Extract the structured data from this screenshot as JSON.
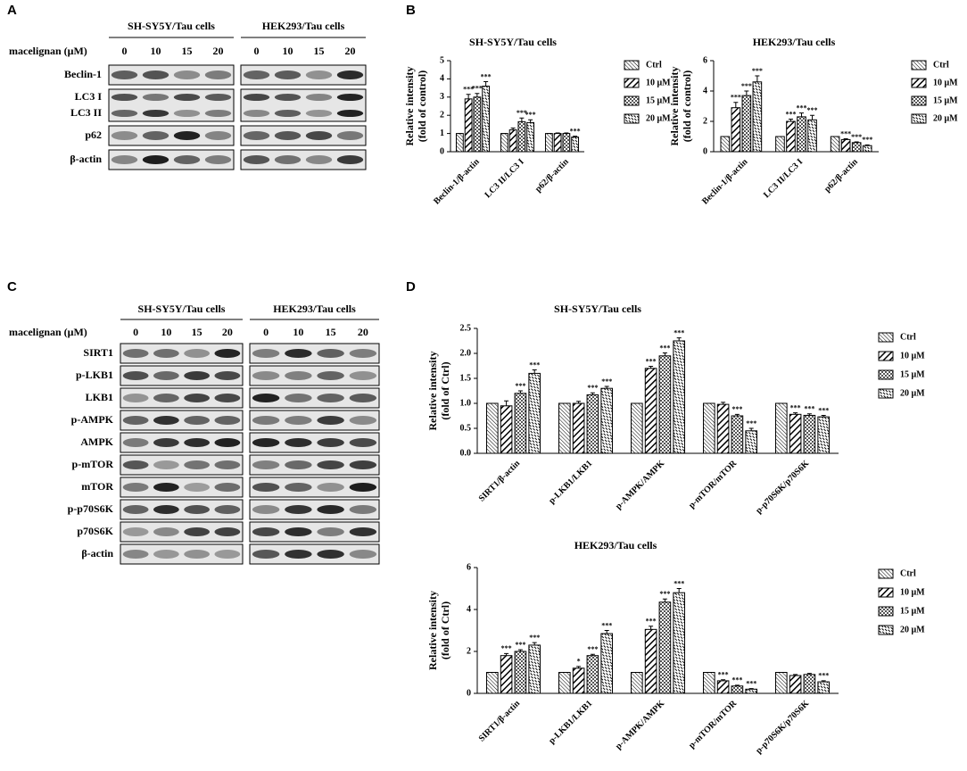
{
  "panel_labels": [
    "A",
    "B",
    "C",
    "D"
  ],
  "blots": [
    {
      "headers": [
        "SH-SY5Y/Tau cells",
        "HEK293/Tau cells"
      ],
      "dose_label": "macelignan (μM)",
      "doses": [
        0,
        10,
        15,
        20
      ],
      "rows": [
        [
          "Beclin-1"
        ],
        [
          "LC3 I",
          "LC3 II"
        ],
        [
          "p62"
        ],
        [
          "β-actin"
        ]
      ]
    },
    {
      "headers": [
        "SH-SY5Y/Tau cells",
        "HEK293/Tau cells"
      ],
      "dose_label": "macelignan (μM)",
      "doses": [
        0,
        10,
        15,
        20
      ],
      "rows": [
        [
          "SIRT1"
        ],
        [
          "p-LKB1"
        ],
        [
          "LKB1"
        ],
        [
          "p-AMPK"
        ],
        [
          "AMPK"
        ],
        [
          "p-mTOR"
        ],
        [
          "mTOR"
        ],
        [
          "p-p70S6K"
        ],
        [
          "p70S6K"
        ],
        [
          "β-actin"
        ]
      ]
    }
  ],
  "chart_data": [
    {
      "type": "bar",
      "title": "SH-SY5Y/Tau cells",
      "ylabel": [
        "Relative intensity",
        "(fold of control)"
      ],
      "categories": [
        "Beclin-1/β-actin",
        "LC3 II/LC3 I",
        "p62/β-actin"
      ],
      "ylim": [
        0,
        5
      ],
      "yticks": [
        0,
        1,
        2,
        3,
        4,
        5
      ],
      "legend": "right",
      "series": [
        {
          "name": "Ctrl",
          "color": "#000000",
          "pattern": "diag",
          "values": [
            1,
            1,
            1
          ],
          "errors": [
            0,
            0,
            0
          ],
          "sig": [
            null,
            null,
            null
          ]
        },
        {
          "name": "10 μM",
          "color": "#000000",
          "pattern": "heavy",
          "values": [
            2.9,
            1.2,
            1
          ],
          "errors": [
            0.25,
            0.1,
            0.03
          ],
          "sig": [
            "***",
            null,
            null
          ]
        },
        {
          "name": "15 μM",
          "color": "#000000",
          "pattern": "cross",
          "values": [
            3.0,
            1.65,
            1
          ],
          "errors": [
            0.2,
            0.2,
            0.03
          ],
          "sig": [
            "***",
            "***",
            null
          ]
        },
        {
          "name": "20 μM",
          "color": "#000000",
          "pattern": "dash",
          "values": [
            3.6,
            1.6,
            0.8
          ],
          "errors": [
            0.25,
            0.15,
            0.05
          ],
          "sig": [
            "***",
            "***",
            "***"
          ]
        }
      ]
    },
    {
      "type": "bar",
      "title": "HEK293/Tau cells",
      "ylabel": [
        "Relative intensity",
        "(fold of control)"
      ],
      "categories": [
        "Beclin-1/β-actin",
        "LC3 II/LC3 I",
        "p62/β-actin"
      ],
      "ylim": [
        0,
        6
      ],
      "yticks": [
        0,
        2,
        4,
        6
      ],
      "legend": "right",
      "series": [
        {
          "name": "Ctrl",
          "color": "#000000",
          "pattern": "diag",
          "values": [
            1,
            1,
            1
          ],
          "errors": [
            0,
            0,
            0
          ],
          "sig": [
            null,
            null,
            null
          ]
        },
        {
          "name": "10 μM",
          "color": "#000000",
          "pattern": "heavy",
          "values": [
            2.9,
            2.0,
            0.8
          ],
          "errors": [
            0.35,
            0.15,
            0.05
          ],
          "sig": [
            "***",
            "***",
            "***"
          ]
        },
        {
          "name": "15 μM",
          "color": "#000000",
          "pattern": "cross",
          "values": [
            3.7,
            2.3,
            0.6
          ],
          "errors": [
            0.3,
            0.25,
            0.05
          ],
          "sig": [
            "***",
            "***",
            "***"
          ]
        },
        {
          "name": "20 μM",
          "color": "#000000",
          "pattern": "dash",
          "values": [
            4.6,
            2.1,
            0.4
          ],
          "errors": [
            0.4,
            0.3,
            0.05
          ],
          "sig": [
            "***",
            "***",
            "***"
          ]
        }
      ]
    },
    {
      "type": "bar",
      "title": "SH-SY5Y/Tau cells",
      "ylabel": [
        "Relative intensity",
        "(fold of Ctrl)"
      ],
      "categories": [
        "SIRT1/β-actin",
        "p-LKB1/LKB1",
        "p-AMPK/AMPK",
        "p-mTOR/mTOR",
        "p-p70S6K/p70S6K"
      ],
      "ylim": [
        0,
        2.5
      ],
      "yticks": [
        {
          "value": 0,
          "label": "0.0"
        },
        0.5,
        {
          "value": 1,
          "label": "1.0"
        },
        1.5,
        {
          "value": 2,
          "label": "2.0"
        },
        2.5
      ],
      "legend": "right",
      "series": [
        {
          "name": "Ctrl",
          "color": "#000000",
          "pattern": "diag",
          "values": [
            1,
            1,
            1,
            1,
            1
          ],
          "errors": [
            0,
            0,
            0,
            0,
            0
          ],
          "sig": [
            null,
            null,
            null,
            null,
            null
          ]
        },
        {
          "name": "10 μM",
          "color": "#000000",
          "pattern": "heavy",
          "values": [
            0.95,
            1.0,
            1.7,
            0.98,
            0.78
          ],
          "errors": [
            0.1,
            0.04,
            0.04,
            0.04,
            0.03
          ],
          "sig": [
            null,
            null,
            "***",
            null,
            "***"
          ]
        },
        {
          "name": "15 μM",
          "color": "#000000",
          "pattern": "cross",
          "values": [
            1.2,
            1.17,
            1.95,
            0.75,
            0.76
          ],
          "errors": [
            0.05,
            0.04,
            0.06,
            0.03,
            0.03
          ],
          "sig": [
            "***",
            "***",
            "***",
            "***",
            "***"
          ]
        },
        {
          "name": "20 μM",
          "color": "#000000",
          "pattern": "dash",
          "values": [
            1.6,
            1.3,
            2.25,
            0.45,
            0.73
          ],
          "errors": [
            0.07,
            0.04,
            0.06,
            0.05,
            0.03
          ],
          "sig": [
            "***",
            "***",
            "***",
            "***",
            "***"
          ]
        }
      ]
    },
    {
      "type": "bar",
      "title": "HEK293/Tau cells",
      "ylabel": [
        "Relative intensity",
        "(fold of Ctrl)"
      ],
      "categories": [
        "SIRT1/β-actin",
        "p-LKB1/LKB1",
        "p-AMPK/AMPK",
        "p-mTOR/mTOR",
        "p-p70S6K/p70S6K"
      ],
      "ylim": [
        0,
        6
      ],
      "yticks": [
        0,
        2,
        4,
        6
      ],
      "legend": "right",
      "series": [
        {
          "name": "Ctrl",
          "color": "#000000",
          "pattern": "diag",
          "values": [
            1,
            1,
            1,
            1,
            1
          ],
          "errors": [
            0,
            0,
            0,
            0,
            0
          ],
          "sig": [
            null,
            null,
            null,
            null,
            null
          ]
        },
        {
          "name": "10 μM",
          "color": "#000000",
          "pattern": "heavy",
          "values": [
            1.8,
            1.2,
            3.05,
            0.6,
            0.85
          ],
          "errors": [
            0.1,
            0.08,
            0.15,
            0.05,
            0.05
          ],
          "sig": [
            "***",
            "*",
            "***",
            "***",
            null
          ]
        },
        {
          "name": "15 μM",
          "color": "#000000",
          "pattern": "cross",
          "values": [
            2.0,
            1.8,
            4.35,
            0.35,
            0.9
          ],
          "errors": [
            0.08,
            0.06,
            0.15,
            0.04,
            0.05
          ],
          "sig": [
            "***",
            "***",
            "***",
            "***",
            null
          ]
        },
        {
          "name": "20 μM",
          "color": "#000000",
          "pattern": "dash",
          "values": [
            2.3,
            2.85,
            4.8,
            0.2,
            0.55
          ],
          "errors": [
            0.12,
            0.15,
            0.2,
            0.03,
            0.05
          ],
          "sig": [
            "***",
            "***",
            "***",
            "***",
            "***"
          ]
        }
      ]
    }
  ]
}
